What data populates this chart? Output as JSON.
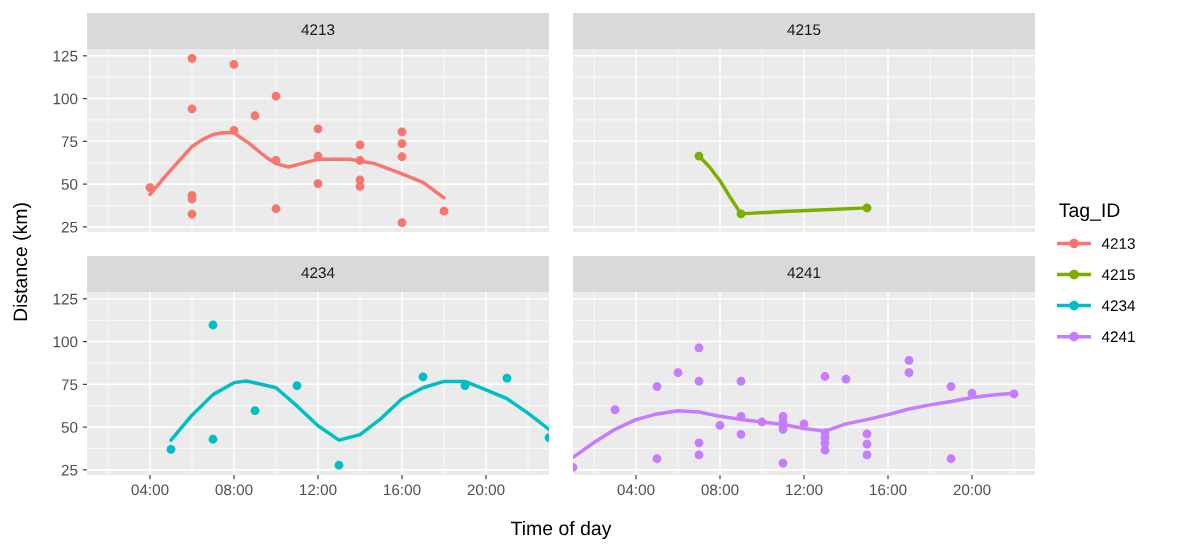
{
  "chart_data": [
    {
      "type": "scatter",
      "title": "4213",
      "xlabel": "Time of day",
      "ylabel": "Distance (km)",
      "legend": "right",
      "legend_title": "Tag_ID",
      "grid": true,
      "tick_labels": "y",
      "xlim": [
        1,
        23
      ],
      "ylim": [
        22,
        129
      ],
      "xticks": [
        {
          "value": 4,
          "label": null
        },
        {
          "value": 8,
          "label": null
        },
        {
          "value": 12,
          "label": null
        },
        {
          "value": 16,
          "label": null
        },
        {
          "value": 20,
          "label": null
        }
      ],
      "yticks": [
        25,
        50,
        75,
        100,
        125
      ],
      "series": [
        {
          "name": "4213",
          "color": "#f8766d",
          "marker": "circle",
          "x": [
            4,
            6,
            6,
            6,
            6,
            6,
            8,
            8,
            9,
            10,
            10,
            10,
            12,
            12,
            12,
            14,
            14,
            14,
            14,
            16,
            16,
            16,
            16,
            18
          ],
          "values": [
            48,
            123.5,
            94,
            43.4,
            41.3,
            32.5,
            120,
            81.4,
            90,
            101.5,
            63.9,
            35.6,
            82.3,
            66.4,
            50.3,
            73,
            63.9,
            52.4,
            48.6,
            80.6,
            73.7,
            66,
            27.5,
            34.2
          ]
        },
        {
          "type": "line",
          "color": "#f8766d",
          "x": [
            4,
            4.9,
            6,
            6.5,
            7,
            7.5,
            8,
            8.7,
            9.5,
            10,
            10.6,
            11.2,
            12,
            13.5,
            14.7,
            16,
            17,
            18
          ],
          "values": [
            44,
            57,
            72,
            76,
            79,
            80,
            80,
            74,
            66,
            62,
            60,
            62,
            64.5,
            64.5,
            62,
            56,
            51,
            42
          ]
        }
      ]
    },
    {
      "type": "scatter",
      "title": "4215",
      "grid": true,
      "tick_labels": false,
      "xlim": [
        1,
        23
      ],
      "ylim": [
        22,
        129
      ],
      "xticks": [
        {
          "value": 4,
          "label": null
        },
        {
          "value": 8,
          "label": null
        },
        {
          "value": 12,
          "label": null
        },
        {
          "value": 16,
          "label": null
        },
        {
          "value": 20,
          "label": null
        }
      ],
      "yticks": [
        {
          "value": 25,
          "label": null
        },
        {
          "value": 50,
          "label": null
        },
        {
          "value": 75,
          "label": null
        },
        {
          "value": 100,
          "label": null
        },
        {
          "value": 125,
          "label": null
        }
      ],
      "series": [
        {
          "name": "4215",
          "color": "#7cae00",
          "marker": "circle",
          "x": [
            7,
            9,
            15
          ],
          "values": [
            66.4,
            32.6,
            36.1
          ]
        },
        {
          "type": "line",
          "color": "#7cae00",
          "x": [
            7,
            7.5,
            8,
            8.5,
            9,
            11,
            13,
            15
          ],
          "values": [
            66.4,
            60,
            52,
            42,
            32.6,
            34,
            35,
            36.1
          ]
        }
      ]
    },
    {
      "type": "scatter",
      "title": "4234",
      "grid": true,
      "xlim": [
        1,
        23
      ],
      "ylim": [
        22,
        129
      ],
      "xticks": [
        {
          "value": 4,
          "label": "04:00"
        },
        {
          "value": 8,
          "label": "08:00"
        },
        {
          "value": 12,
          "label": "12:00"
        },
        {
          "value": 16,
          "label": "16:00"
        },
        {
          "value": 20,
          "label": "20:00"
        }
      ],
      "yticks": [
        25,
        50,
        75,
        100,
        125
      ],
      "series": [
        {
          "name": "4234",
          "color": "#00bfc4",
          "marker": "circle",
          "x": [
            5,
            7,
            7,
            9,
            11,
            13,
            17,
            19,
            21,
            23
          ],
          "values": [
            37,
            109.7,
            42.9,
            59.7,
            74.2,
            27.7,
            79.4,
            74.2,
            78.6,
            43.9
          ]
        },
        {
          "type": "line",
          "color": "#00bfc4",
          "x": [
            5,
            6,
            7,
            8,
            8.6,
            10,
            11,
            12,
            13,
            14,
            15,
            16,
            17,
            18,
            19,
            20,
            21,
            22,
            23
          ],
          "values": [
            42.4,
            57,
            69,
            76,
            77,
            73,
            62.4,
            50.8,
            42.4,
            45.6,
            55,
            66.6,
            73,
            76.7,
            76.7,
            71.8,
            66.6,
            58.2,
            48.7
          ]
        }
      ]
    },
    {
      "type": "scatter",
      "title": "4241",
      "grid": true,
      "tick_labels": "x",
      "xlim": [
        1,
        23
      ],
      "ylim": [
        22,
        129
      ],
      "xticks": [
        {
          "value": 4,
          "label": "04:00"
        },
        {
          "value": 8,
          "label": "08:00"
        },
        {
          "value": 12,
          "label": "12:00"
        },
        {
          "value": 16,
          "label": "16:00"
        },
        {
          "value": 20,
          "label": "20:00"
        }
      ],
      "yticks": [
        {
          "value": 25,
          "label": null
        },
        {
          "value": 50,
          "label": null
        },
        {
          "value": 75,
          "label": null
        },
        {
          "value": 100,
          "label": null
        },
        {
          "value": 125,
          "label": null
        }
      ],
      "series": [
        {
          "name": "4241",
          "color": "#c77cff",
          "marker": "circle",
          "x": [
            1,
            3,
            5,
            5,
            6,
            7,
            7,
            7,
            7,
            8,
            9,
            9,
            9,
            10,
            11,
            11,
            11,
            11,
            11,
            12,
            13,
            13,
            13,
            13,
            13,
            14,
            15,
            15,
            15,
            17,
            17,
            19,
            19,
            20,
            22
          ],
          "values": [
            26.5,
            60.2,
            73.7,
            31.5,
            81.9,
            96.3,
            76.9,
            40.8,
            33.8,
            51,
            76.9,
            56.3,
            45.8,
            53,
            56.3,
            53.5,
            51,
            48.7,
            29,
            51.9,
            79.6,
            46.7,
            43.8,
            40.6,
            36.5,
            78.1,
            46,
            40,
            33.8,
            89,
            81.9,
            73.7,
            31.5,
            69.8,
            69.4
          ]
        },
        {
          "type": "line",
          "color": "#c77cff",
          "x": [
            1,
            2,
            3,
            4,
            5,
            6,
            7,
            8,
            9,
            10,
            11,
            12,
            13,
            14,
            15,
            16,
            17,
            18,
            19,
            20,
            21,
            22
          ],
          "values": [
            32.3,
            41,
            48.7,
            54.4,
            57.7,
            59.6,
            58.8,
            56.3,
            54.4,
            53,
            51.5,
            49.2,
            47.7,
            51.9,
            54.4,
            57.3,
            60.6,
            63,
            65,
            67.3,
            68.8,
            69.8
          ]
        }
      ]
    }
  ]
}
